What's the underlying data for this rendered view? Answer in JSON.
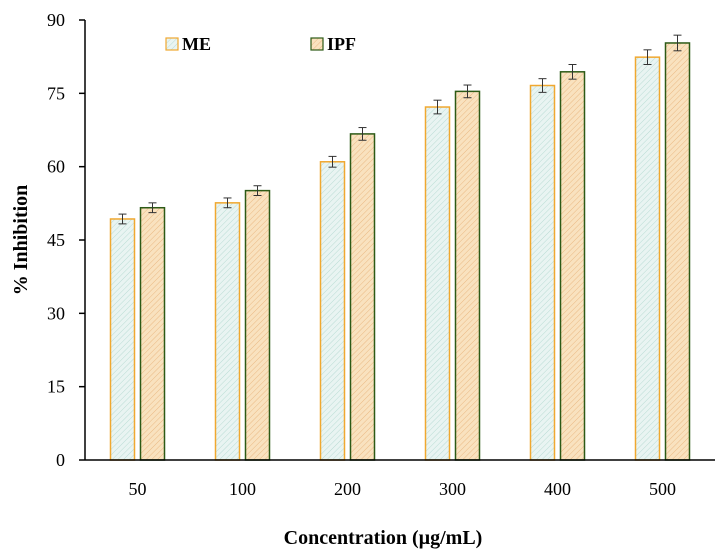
{
  "chart_data": {
    "type": "bar",
    "categories": [
      "50",
      "100",
      "200",
      "300",
      "400",
      "500"
    ],
    "series": [
      {
        "name": "ME",
        "values": [
          49.3,
          52.6,
          61.0,
          72.2,
          76.6,
          82.4
        ],
        "errors": [
          1.0,
          1.0,
          1.1,
          1.4,
          1.4,
          1.5
        ],
        "fill": "#e9f4f2",
        "stroke": "#f0a830"
      },
      {
        "name": "IPF",
        "values": [
          51.6,
          55.1,
          66.7,
          75.4,
          79.4,
          85.3
        ],
        "errors": [
          1.0,
          1.0,
          1.3,
          1.3,
          1.5,
          1.6
        ],
        "fill": "#f8dcb4",
        "stroke": "#2d5a16"
      }
    ],
    "yticks": [
      "0",
      "15",
      "30",
      "45",
      "60",
      "75",
      "90"
    ],
    "ylim": [
      0,
      90
    ],
    "xlabel": "Concentration (µg/mL)",
    "ylabel": "% Inhibition",
    "grid": false,
    "legend_position": "top-left"
  }
}
